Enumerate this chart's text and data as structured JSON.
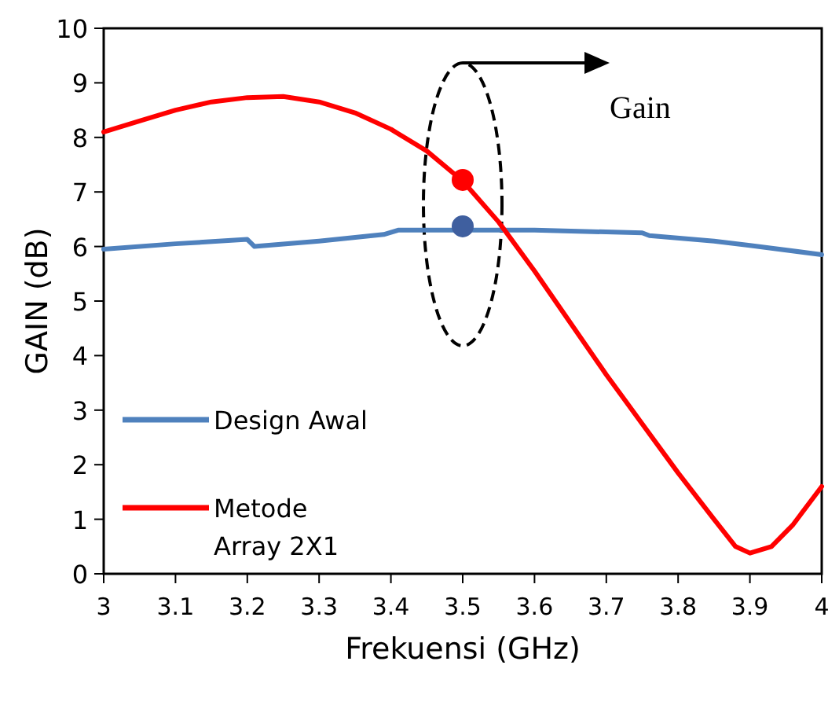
{
  "chart_data": {
    "type": "line",
    "xlabel": "Frekuensi (GHz)",
    "ylabel": "GAIN (dB)",
    "xlim": [
      3,
      4
    ],
    "ylim": [
      0,
      10
    ],
    "xticks": [
      3,
      {
        "value": 3.1,
        "label": "3.1"
      },
      {
        "value": 3.2,
        "label": "3.2"
      },
      {
        "value": 3.3,
        "label": "3.3"
      },
      {
        "value": 3.4,
        "label": "3.4"
      },
      {
        "value": 3.5,
        "label": "3.5"
      },
      {
        "value": 3.6,
        "label": "3.6"
      },
      {
        "value": 3.7,
        "label": "3.7"
      },
      {
        "value": 3.8,
        "label": "3.8"
      },
      {
        "value": 3.9,
        "label": "3.9"
      },
      4
    ],
    "yticks": [
      0,
      1,
      2,
      3,
      4,
      5,
      6,
      7,
      8,
      9,
      10
    ],
    "grid": false,
    "legend": "bottom left",
    "marker": "none",
    "line_style": "solid",
    "annotations": [
      "Gain"
    ],
    "series": [
      {
        "name": "Design Awal",
        "color": "#4f81bd",
        "x": [
          3,
          3.1,
          3.2,
          3.21,
          3.3,
          3.39,
          3.41,
          3.5,
          3.6,
          3.75,
          3.76,
          3.85,
          3.9,
          4
        ],
        "values": [
          5.95,
          6.05,
          6.13,
          6.0,
          6.1,
          6.22,
          6.3,
          6.3,
          6.3,
          6.25,
          6.2,
          6.1,
          6.02,
          5.85
        ]
      },
      {
        "name": "Metode Array 2X1",
        "color": "#ff0000",
        "x": [
          3,
          3.05,
          3.1,
          3.15,
          3.2,
          3.25,
          3.3,
          3.35,
          3.4,
          3.45,
          3.5,
          3.55,
          3.6,
          3.65,
          3.7,
          3.75,
          3.8,
          3.85,
          3.88,
          3.9,
          3.93,
          3.96,
          4
        ],
        "values": [
          8.1,
          8.3,
          8.5,
          8.65,
          8.73,
          8.75,
          8.65,
          8.45,
          8.15,
          7.75,
          7.2,
          6.45,
          5.55,
          4.6,
          3.65,
          2.75,
          1.85,
          1.0,
          0.5,
          0.38,
          0.5,
          0.9,
          1.6
        ]
      },
      {
        "type": "scatter",
        "color": "#ff0000",
        "x": [
          3.5
        ],
        "values": [
          7.22
        ],
        "marker": "circle"
      },
      {
        "type": "scatter",
        "color": "#3f5f9f",
        "x": [
          3.5
        ],
        "values": [
          6.37
        ],
        "marker": "circle"
      }
    ]
  }
}
